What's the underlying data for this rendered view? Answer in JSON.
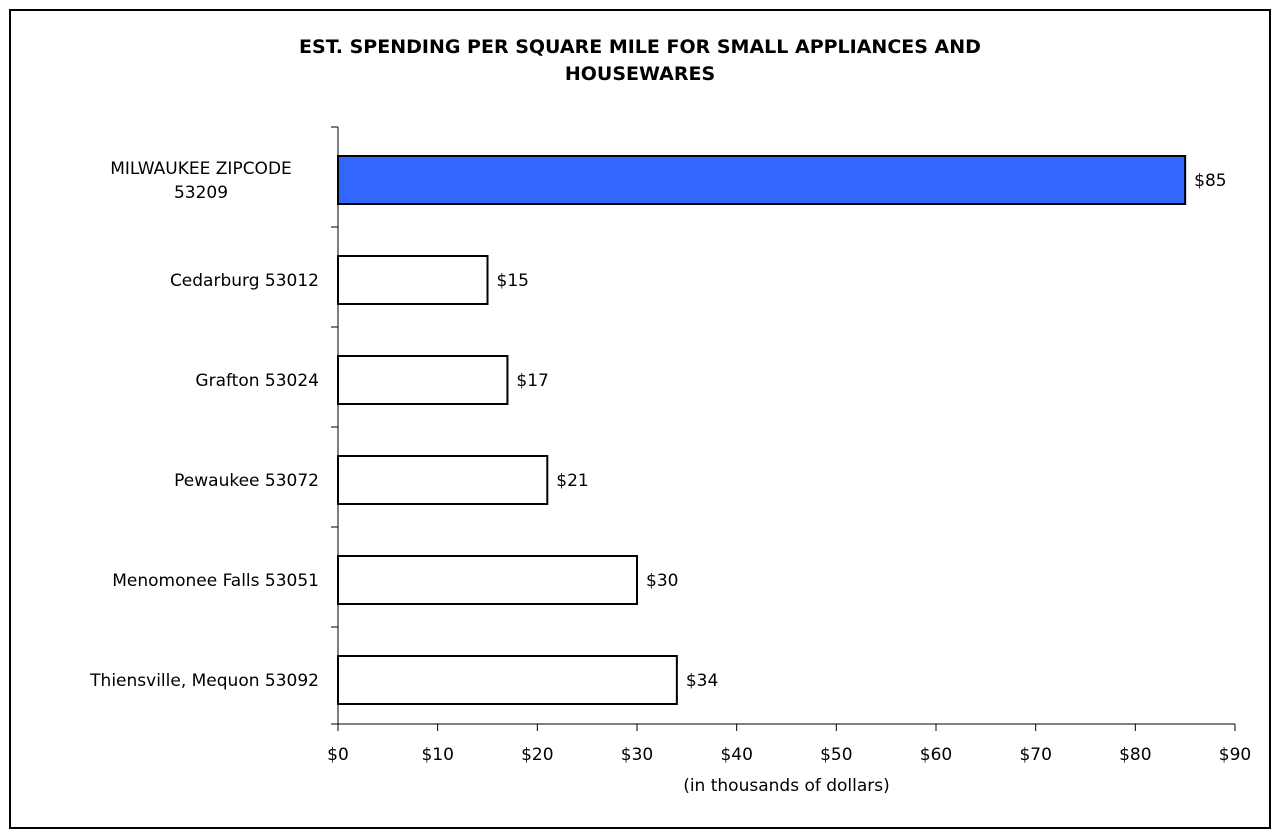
{
  "chart_data": {
    "type": "bar",
    "orientation": "horizontal",
    "title": "EST. SPENDING PER SQUARE MILE FOR SMALL APPLIANCES AND HOUSEWARES",
    "title_lines": [
      "EST. SPENDING PER SQUARE MILE FOR SMALL APPLIANCES AND",
      "HOUSEWARES"
    ],
    "xlabel": "(in thousands of dollars)",
    "ylabel": "",
    "xlim": [
      0,
      90
    ],
    "x_ticks": [
      0,
      10,
      20,
      30,
      40,
      50,
      60,
      70,
      80,
      90
    ],
    "x_tick_labels": [
      "$0",
      "$10",
      "$20",
      "$30",
      "$40",
      "$50",
      "$60",
      "$70",
      "$80",
      "$90"
    ],
    "grid": false,
    "legend": "none",
    "categories": [
      [
        "MILWAUKEE ZIPCODE",
        "53209"
      ],
      [
        "Cedarburg 53012"
      ],
      [
        "Grafton 53024"
      ],
      [
        "Pewaukee 53072"
      ],
      [
        "Menomonee Falls 53051"
      ],
      [
        "Thiensville, Mequon 53092"
      ]
    ],
    "values": [
      85,
      15,
      17,
      21,
      30,
      34
    ],
    "data_labels": [
      "$85",
      "$15",
      "$17",
      "$21",
      "$30",
      "$34"
    ],
    "bar_colors": [
      "#3366ff",
      "#ffffff",
      "#ffffff",
      "#ffffff",
      "#ffffff",
      "#ffffff"
    ],
    "bar_edge_color": "#000000"
  }
}
